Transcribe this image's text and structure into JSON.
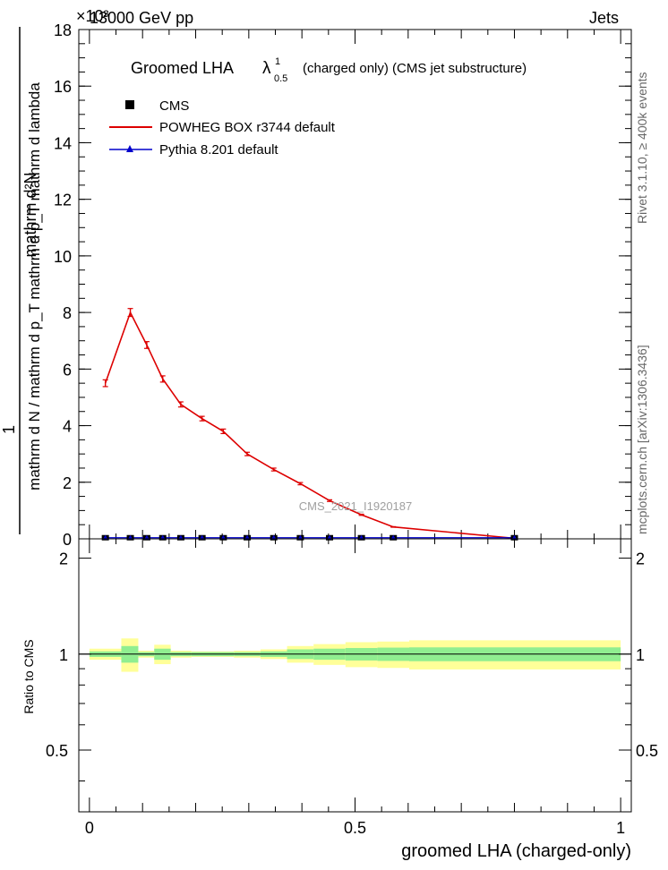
{
  "header": {
    "left_label": "13000 GeV pp",
    "right_label": "Jets",
    "exponent_label": "×10³"
  },
  "side_labels": {
    "rivet": "Rivet 3.1.10, ≥ 400k events",
    "mcplots": "mcplots.cern.ch [arXiv:1306.3436]"
  },
  "watermark": "CMS_2021_I1920187",
  "chart_data": [
    {
      "type": "line",
      "title": "Groomed LHA  λ^1_0.5  (charged only) (CMS jet substructure)",
      "title_main": "Groomed LHA",
      "title_symbol": "λ",
      "title_sup": "1",
      "title_sub": "0.5",
      "title_rest": "(charged only) (CMS jet substructure)",
      "ylabel_numerator": "1",
      "ylabel_denominator": "mathrm d N / mathrm d p_T mathrm d p_T mathrm d lambda",
      "ylabel_top": "mathrm d²N",
      "ylim": [
        0,
        18
      ],
      "yticks": [
        0,
        2,
        4,
        6,
        8,
        10,
        12,
        14,
        16,
        18
      ],
      "ytick_labels": [
        "0",
        "2",
        "4",
        "6",
        "8",
        "10",
        "12",
        "14",
        "16",
        "18"
      ],
      "xlim": [
        -0.02,
        1.02
      ],
      "scale_factor": 1000,
      "legend_position": "top-left",
      "legend": [
        {
          "name": "CMS",
          "marker": "square",
          "color": "#000000"
        },
        {
          "name": "POWHEG BOX r3744 default",
          "marker": "line",
          "color": "#dd0000"
        },
        {
          "name": "Pythia 8.201 default",
          "marker": "triangle",
          "color": "#0000cc"
        }
      ],
      "series": [
        {
          "name": "POWHEG BOX r3744 default",
          "x": [
            0.03,
            0.077,
            0.108,
            0.138,
            0.172,
            0.212,
            0.252,
            0.297,
            0.347,
            0.397,
            0.452,
            0.512,
            0.572,
            0.8
          ],
          "y": [
            5.5,
            8.0,
            6.85,
            5.65,
            4.75,
            4.25,
            3.8,
            3.0,
            2.45,
            1.95,
            1.35,
            0.85,
            0.42,
            0.02
          ],
          "err": [
            0.12,
            0.14,
            0.12,
            0.11,
            0.09,
            0.08,
            0.08,
            0.06,
            0.05,
            0.04,
            0.03,
            0.02,
            0.01,
            0.01
          ]
        },
        {
          "name": "CMS",
          "x": [
            0.03,
            0.077,
            0.108,
            0.138,
            0.172,
            0.212,
            0.252,
            0.297,
            0.347,
            0.397,
            0.452,
            0.512,
            0.572,
            0.8
          ],
          "y": [
            0.008,
            0.008,
            0.008,
            0.008,
            0.008,
            0.008,
            0.008,
            0.008,
            0.008,
            0.008,
            0.008,
            0.008,
            0.008,
            0.008
          ]
        },
        {
          "name": "Pythia 8.201 default",
          "x": [
            0.03,
            0.077,
            0.108,
            0.138,
            0.172,
            0.212,
            0.252,
            0.297,
            0.347,
            0.397,
            0.452,
            0.512,
            0.572,
            0.8
          ],
          "y": [
            0.008,
            0.008,
            0.008,
            0.008,
            0.008,
            0.008,
            0.008,
            0.008,
            0.008,
            0.008,
            0.008,
            0.008,
            0.008,
            0.008
          ]
        }
      ]
    },
    {
      "type": "area",
      "ylabel": "Ratio to CMS",
      "xlabel": "groomed LHA (charged-only)",
      "ylim": [
        0.32,
        2.3
      ],
      "xlim": [
        -0.02,
        1.02
      ],
      "yticks": [
        0.5,
        1,
        2
      ],
      "ytick_labels": [
        "0.5",
        "1",
        "2"
      ],
      "xticks": [
        0,
        0.5,
        1
      ],
      "xtick_labels": [
        "0",
        "0.5",
        "1"
      ],
      "reference_line": 1,
      "bands": {
        "bin_edges": [
          0.0,
          0.06,
          0.092,
          0.122,
          0.153,
          0.192,
          0.232,
          0.272,
          0.322,
          0.372,
          0.422,
          0.482,
          0.542,
          0.602,
          1.0
        ],
        "green_halfwidth": [
          0.02,
          0.06,
          0.015,
          0.04,
          0.015,
          0.015,
          0.015,
          0.015,
          0.02,
          0.035,
          0.04,
          0.045,
          0.048,
          0.05
        ],
        "yellow_halfwidth": [
          0.04,
          0.12,
          0.025,
          0.07,
          0.025,
          0.02,
          0.02,
          0.025,
          0.035,
          0.06,
          0.075,
          0.09,
          0.095,
          0.105
        ],
        "green_color": "#90ee90",
        "yellow_color": "#ffff99"
      }
    }
  ]
}
